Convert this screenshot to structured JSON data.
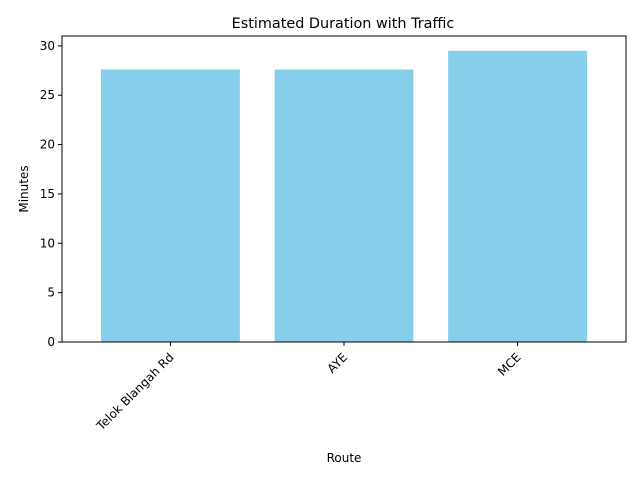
{
  "chart_data": {
    "type": "bar",
    "title": "Estimated Duration with Traffic",
    "xlabel": "Route",
    "ylabel": "Minutes",
    "categories": [
      "Telok Blangah Rd",
      "AYE",
      "MCE"
    ],
    "values": [
      27.6,
      27.6,
      29.5
    ],
    "ylim": [
      0,
      31
    ],
    "yticks": [
      0,
      5,
      10,
      15,
      20,
      25,
      30
    ],
    "bar_color": "#87ceeb",
    "grid": false,
    "legend": "none",
    "xtick_rotation": 45
  }
}
